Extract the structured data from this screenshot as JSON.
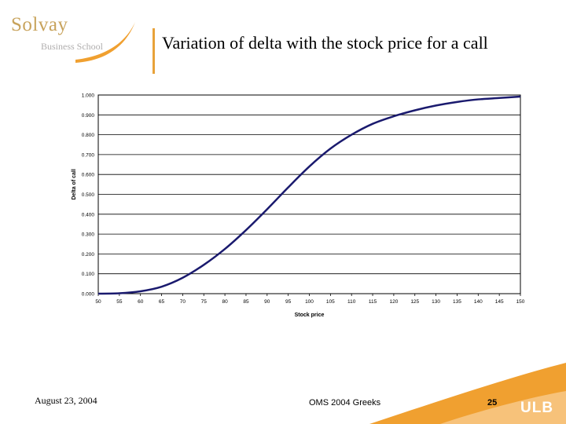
{
  "header": {
    "logo_main": "Solvay",
    "logo_sub": "Business School",
    "title": "Variation of delta with the stock price for a call"
  },
  "footer": {
    "date": "August 23, 2004",
    "center": "OMS 2004 Greeks",
    "page": "25",
    "ulb": "ULB"
  },
  "colors": {
    "line": "#1a1a6e",
    "grid": "#000000",
    "logo_gold": "#c8a35c",
    "accent_orange": "#f0a030"
  },
  "chart_data": {
    "type": "line",
    "title": "",
    "xlabel": "Stock price",
    "ylabel": "Delta of call",
    "xlim": [
      50,
      150
    ],
    "ylim": [
      0,
      1
    ],
    "x_ticks": [
      "50",
      "55",
      "60",
      "65",
      "70",
      "75",
      "80",
      "85",
      "90",
      "95",
      "100",
      "105",
      "110",
      "115",
      "120",
      "125",
      "130",
      "135",
      "140",
      "145",
      "150"
    ],
    "y_ticks": [
      "0.000",
      "0.100",
      "0.200",
      "0.300",
      "0.400",
      "0.500",
      "0.600",
      "0.700",
      "0.800",
      "0.900",
      "1.000"
    ],
    "grid": "horizontal",
    "series": [
      {
        "x": [
          50,
          55,
          60,
          65,
          70,
          75,
          80,
          85,
          90,
          95,
          100,
          105,
          110,
          115,
          120,
          125,
          130,
          135,
          140,
          145,
          150
        ],
        "values": [
          0.0,
          0.002,
          0.012,
          0.035,
          0.08,
          0.145,
          0.225,
          0.32,
          0.425,
          0.535,
          0.64,
          0.73,
          0.8,
          0.855,
          0.893,
          0.923,
          0.947,
          0.965,
          0.978,
          0.985,
          0.992
        ]
      }
    ]
  }
}
